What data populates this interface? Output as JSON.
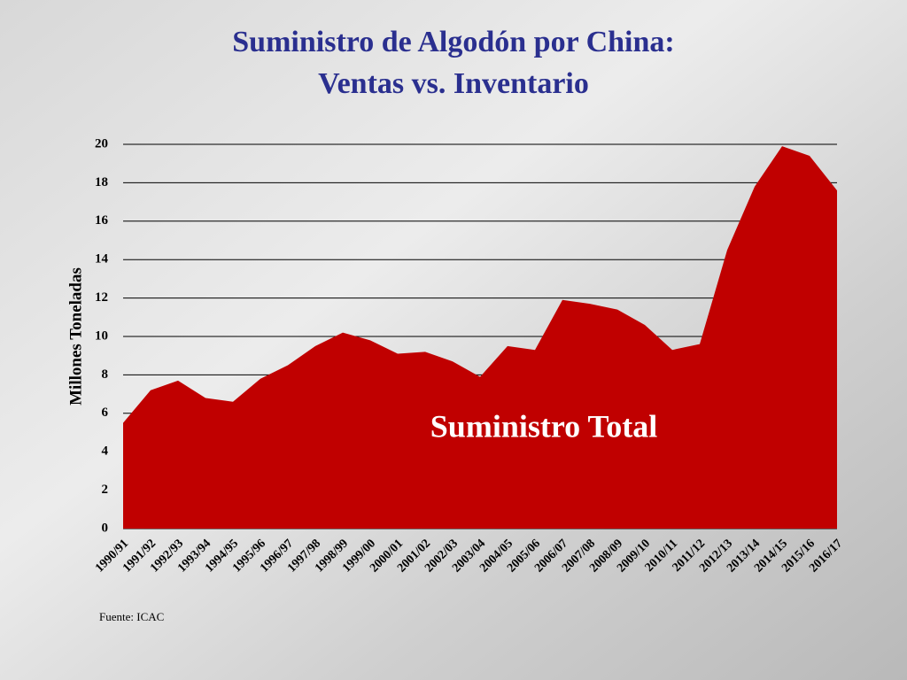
{
  "chart_data": {
    "type": "area",
    "title": [
      "Suministro de Algodón por China:",
      "Ventas vs. Inventario"
    ],
    "y_label": "Millones Toneladas",
    "annotation": "Suministro Total",
    "source": "Fuente: ICAC",
    "categories": [
      "1990/91",
      "1991/92",
      "1992/93",
      "1993/94",
      "1994/95",
      "1995/96",
      "1996/97",
      "1997/98",
      "1998/99",
      "1999/00",
      "2000/01",
      "2001/02",
      "2002/03",
      "2003/04",
      "2004/05",
      "2005/06",
      "2006/07",
      "2007/08",
      "2008/09",
      "2009/10",
      "2010/11",
      "2011/12",
      "2012/13",
      "2013/14",
      "2014/15",
      "2015/16",
      "2016/17"
    ],
    "values": [
      5.5,
      7.2,
      7.7,
      6.8,
      6.6,
      7.8,
      8.5,
      9.5,
      10.2,
      9.8,
      9.1,
      9.2,
      8.7,
      7.9,
      9.5,
      9.3,
      11.9,
      11.7,
      11.4,
      10.6,
      9.3,
      9.6,
      14.5,
      17.8,
      19.9,
      19.4,
      17.6
    ],
    "color": "#c00000",
    "ylim": [
      0,
      20
    ],
    "yticks": [
      0,
      2,
      4,
      6,
      8,
      10,
      12,
      14,
      16,
      18,
      20
    ],
    "grid": true
  }
}
